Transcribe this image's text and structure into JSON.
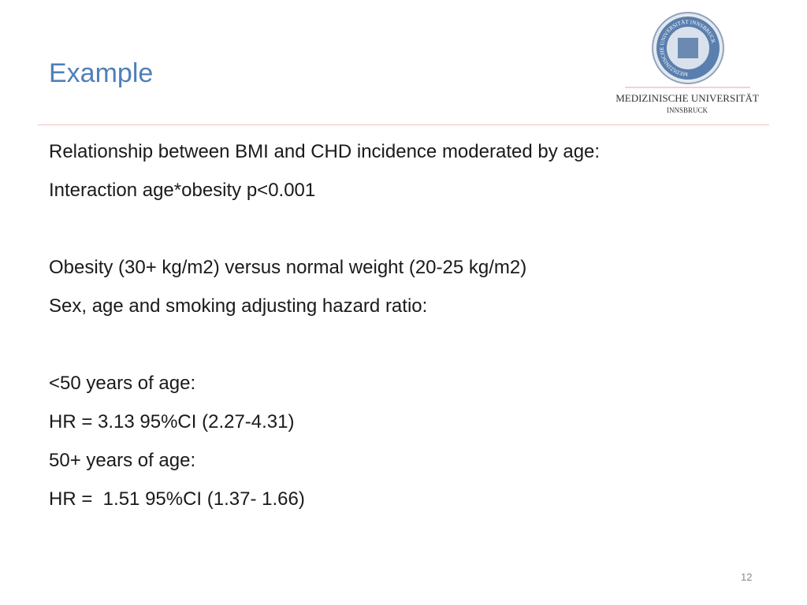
{
  "header": {
    "title": "Example",
    "logo": {
      "seal_text": "MEDIZINISCHE UNIVERSITÄT INNSBRUCK",
      "name": "MEDIZINISCHE UNIVERSITÄT",
      "city": "INNSBRUCK"
    }
  },
  "body": [
    [
      "Relationship between BMI and CHD incidence moderated by age:",
      "Interaction age*obesity p<0.001"
    ],
    [
      "Obesity (30+ kg/m2) versus normal weight (20-25 kg/m2)",
      "Sex, age and smoking adjusting hazard ratio:"
    ],
    [
      "<50 years of age:",
      "HR = 3.13 95%CI (2.27-4.31)",
      "50+ years of age:",
      "HR =  1.51 95%CI (1.37- 1.66)"
    ]
  ],
  "footer": {
    "page_number": "12"
  }
}
